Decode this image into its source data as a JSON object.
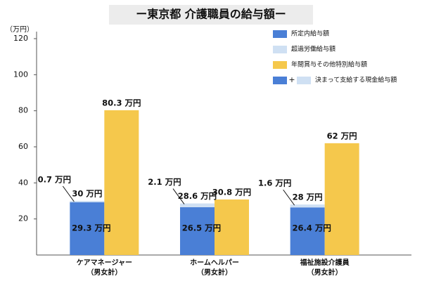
{
  "chart_data": {
    "type": "bar",
    "title": "ー東京都 介護職員の給与額ー",
    "y_label": "（万円）",
    "categories": [
      [
        "ケアマネージャー",
        "（男女計）"
      ],
      [
        "ホームヘルパー",
        "（男女計）"
      ],
      [
        "福祉施設介護員",
        "（男女計）"
      ]
    ],
    "series": [
      {
        "name": "所定内給与額",
        "color": "#4a7fd6",
        "values": [
          29.3,
          26.5,
          26.4
        ],
        "value_labels": [
          "29.3 万円",
          "26.5 万円",
          "26.4 万円"
        ]
      },
      {
        "name": "超過労働給与額",
        "color": "#cfe0f3",
        "values": [
          0.7,
          2.1,
          1.6
        ],
        "value_labels": [
          "0.7 万円",
          "2.1 万円",
          "1.6 万円"
        ]
      },
      {
        "name": "年間賞与その他特別給与額",
        "color": "#f5c84c",
        "values": [
          80.3,
          30.8,
          62
        ],
        "value_labels": [
          "80.3 万円",
          "30.8 万円",
          "62 万円"
        ]
      }
    ],
    "totals": {
      "name": "決まって支給する現金給与額",
      "legend_symbol": "+",
      "values": [
        30,
        28.6,
        28
      ],
      "value_labels": [
        "30 万円",
        "28.6 万円",
        "28 万円"
      ]
    },
    "ylim": [
      0,
      120
    ],
    "yticks": [
      20,
      40,
      60,
      80,
      100,
      120
    ],
    "grid": false
  }
}
